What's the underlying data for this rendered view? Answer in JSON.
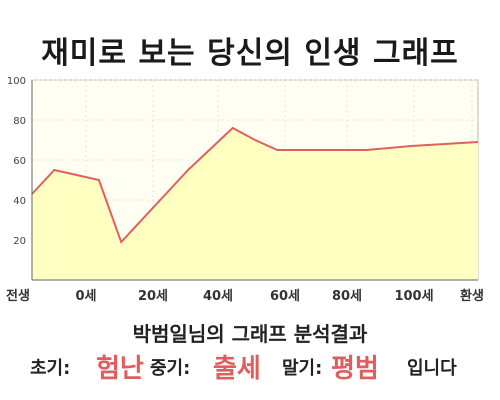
{
  "title": "재미로 보는 당신의 인생 그래프",
  "chart_data": {
    "type": "area",
    "x": [
      -5,
      0,
      10,
      15,
      25,
      30,
      40,
      45,
      50,
      60,
      70,
      80,
      95
    ],
    "y": [
      43,
      55,
      50,
      19,
      43,
      55,
      76,
      70,
      65,
      65,
      65,
      67,
      69
    ],
    "x_ticks": [
      {
        "x": -5,
        "label": "전생"
      },
      {
        "x": 0,
        "label": "0세"
      },
      {
        "x": 20,
        "label": "20세"
      },
      {
        "x": 40,
        "label": "40세"
      },
      {
        "x": 60,
        "label": "60세"
      },
      {
        "x": 80,
        "label": "80세"
      },
      {
        "x": 100,
        "label": "100세"
      },
      {
        "x": 115,
        "label": "환생"
      }
    ],
    "y_ticks": [
      20,
      40,
      60,
      80,
      100
    ],
    "ylim": [
      0,
      100
    ],
    "grid": true,
    "colors": {
      "line": "#e06060",
      "fill": "#ffffc2",
      "plot_bg": "#fefef3"
    }
  },
  "summary": "박범일님의 그래프 분석결과",
  "result": {
    "early_label": "초기:",
    "early_value": "험난",
    "mid_label": "중기:",
    "mid_value": "출세",
    "late_label": "말기:",
    "late_value": "평범",
    "ending": "입니다"
  }
}
